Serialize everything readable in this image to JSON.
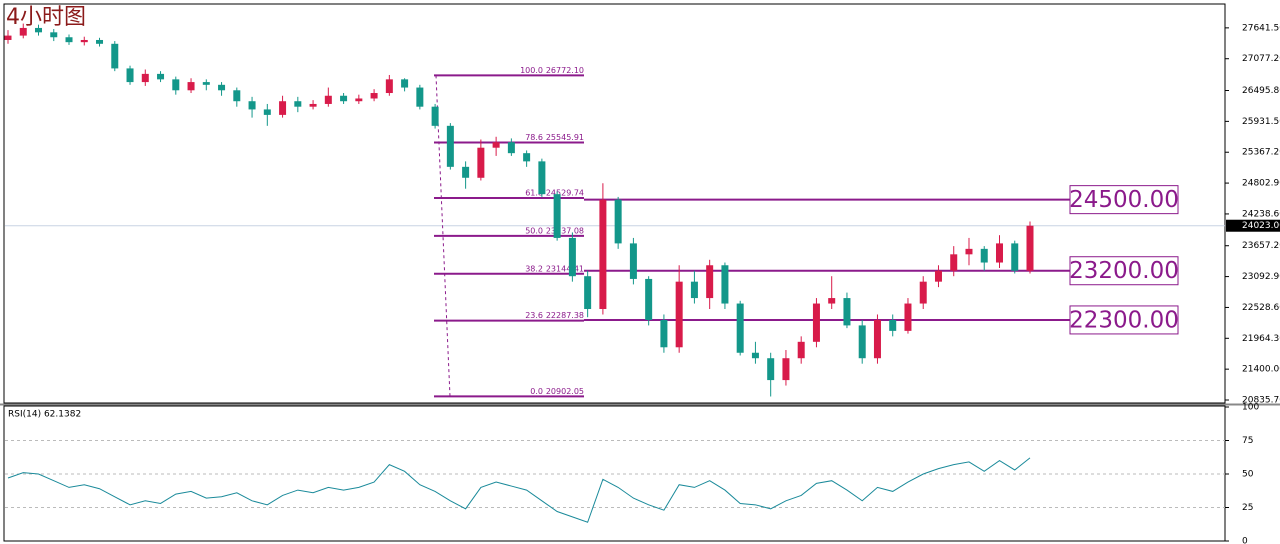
{
  "chart_data": {
    "type": "candlestick",
    "title": "4小时图",
    "ylim": [
      20781,
      28078
    ],
    "yticks": [
      {
        "value": 27641.5,
        "label": "27641.50"
      },
      {
        "value": 27077.2,
        "label": "27077.20"
      },
      {
        "value": 26495.8,
        "label": "26495.80"
      },
      {
        "value": 25931.5,
        "label": "25931.50"
      },
      {
        "value": 25367.2,
        "label": "25367.20"
      },
      {
        "value": 24802.9,
        "label": "24802.90"
      },
      {
        "value": 24238.6,
        "label": "24238.60"
      },
      {
        "value": 23657.2,
        "label": "23657.20"
      },
      {
        "value": 23092.9,
        "label": "23092.90"
      },
      {
        "value": 22528.6,
        "label": "22528.60"
      },
      {
        "value": 21964.3,
        "label": "21964.30"
      },
      {
        "value": 21400,
        "label": "21400.00"
      },
      {
        "value": 20835.7,
        "label": "20835.70"
      }
    ],
    "open": [
      27420,
      27500,
      27640,
      27560,
      27470,
      27380,
      27420,
      27350,
      26900,
      26650,
      26800,
      26700,
      26500,
      26650,
      26600,
      26500,
      26300,
      26150,
      26050,
      26300,
      26200,
      26250,
      26400,
      26300,
      26350,
      26450,
      26700,
      26550,
      26200,
      25850,
      25100,
      24900,
      25450,
      25550,
      25350,
      25200,
      24600,
      23800,
      23100,
      22500,
      24500,
      23700,
      23050,
      22300,
      21800,
      23000,
      22700,
      23300,
      22600,
      21700,
      21600,
      21200,
      21600,
      21900,
      22600,
      22700,
      22200,
      21600,
      22300,
      22100,
      22600,
      23000,
      23200,
      23500,
      23600,
      23350,
      23700,
      23200
    ],
    "high": [
      27600,
      27720,
      27700,
      27620,
      27520,
      27480,
      27460,
      27400,
      26950,
      26880,
      26850,
      26750,
      26720,
      26700,
      26650,
      26550,
      26380,
      26250,
      26400,
      26380,
      26320,
      26550,
      26450,
      26420,
      26520,
      26780,
      26720,
      26600,
      26250,
      25900,
      25200,
      25600,
      25650,
      25620,
      25400,
      25250,
      24650,
      23900,
      23200,
      24800,
      24550,
      23800,
      23100,
      22400,
      23300,
      23200,
      23400,
      23350,
      22650,
      21900,
      21700,
      21750,
      22000,
      22700,
      23100,
      22800,
      22300,
      22400,
      22400,
      22700,
      23100,
      23300,
      23650,
      23800,
      23650,
      23850,
      23750,
      24100
    ],
    "low": [
      27350,
      27450,
      27500,
      27400,
      27330,
      27320,
      27300,
      26850,
      26600,
      26580,
      26650,
      26420,
      26450,
      26500,
      26400,
      26200,
      26000,
      25850,
      26000,
      26100,
      26150,
      26200,
      26250,
      26250,
      26300,
      26400,
      26480,
      26150,
      25800,
      25050,
      24700,
      24850,
      25300,
      25300,
      25100,
      24550,
      23750,
      23000,
      22350,
      22400,
      23600,
      22950,
      22200,
      21700,
      21700,
      22600,
      22500,
      22500,
      21650,
      21500,
      20900,
      21100,
      21500,
      21800,
      22500,
      22150,
      21500,
      21500,
      22000,
      22050,
      22500,
      22900,
      23100,
      23300,
      23200,
      23250,
      23150,
      23150
    ],
    "close": [
      27500,
      27640,
      27560,
      27470,
      27380,
      27420,
      27350,
      26900,
      26650,
      26800,
      26700,
      26500,
      26650,
      26600,
      26500,
      26300,
      26150,
      26050,
      26300,
      26200,
      26250,
      26400,
      26300,
      26350,
      26450,
      26700,
      26550,
      26200,
      25850,
      25100,
      24900,
      25450,
      25550,
      25350,
      25200,
      24600,
      23800,
      23100,
      22500,
      24500,
      23700,
      23050,
      22300,
      21800,
      23000,
      22700,
      23300,
      22600,
      21700,
      21600,
      21200,
      21600,
      21900,
      22600,
      22700,
      22200,
      21600,
      22300,
      22100,
      22600,
      23000,
      23200,
      23500,
      23600,
      23350,
      23700,
      23200,
      24023
    ],
    "up_color": "#d81b4a",
    "down_color": "#13978a",
    "current_price": {
      "value": 24023,
      "label": "24023.00"
    },
    "fib": {
      "color": "#8b1a8b",
      "levels": [
        {
          "level": "100.0",
          "value": 26772.1,
          "label": "26772.10"
        },
        {
          "level": "78.6",
          "value": 25545.91,
          "label": "25545.91"
        },
        {
          "level": "61.8",
          "value": 24529.74,
          "label": "24529.74"
        },
        {
          "level": "50.0",
          "value": 23837.08,
          "label": "23837.08"
        },
        {
          "level": "38.2",
          "value": 23144.41,
          "label": "23144.41"
        },
        {
          "level": "23.6",
          "value": 22287.38,
          "label": "22287.38"
        },
        {
          "level": "0.0",
          "value": 20902.05,
          "label": "20902.05"
        }
      ]
    },
    "levels": [
      {
        "value": 24500,
        "label": "24500.00"
      },
      {
        "value": 23200,
        "label": "23200.00"
      },
      {
        "value": 22300,
        "label": "22300.00"
      }
    ],
    "rsi": {
      "title": "RSI(14) 62.1382",
      "ylim": [
        0,
        100
      ],
      "yticks": [
        100,
        75,
        50,
        25,
        0
      ],
      "levels": [
        75,
        50,
        25
      ],
      "color": "#1a8a9a",
      "values": [
        47,
        51,
        50,
        45,
        40,
        42,
        39,
        33,
        27,
        30,
        28,
        35,
        37,
        32,
        33,
        36,
        30,
        27,
        34,
        38,
        36,
        40,
        38,
        40,
        44,
        57,
        52,
        42,
        37,
        30,
        24,
        40,
        44,
        41,
        38,
        30,
        22,
        18,
        14,
        46,
        40,
        32,
        27,
        23,
        42,
        40,
        45,
        38,
        28,
        27,
        24,
        30,
        34,
        43,
        45,
        38,
        30,
        40,
        37,
        44,
        50,
        54,
        57,
        59,
        52,
        60,
        53,
        62
      ]
    }
  }
}
